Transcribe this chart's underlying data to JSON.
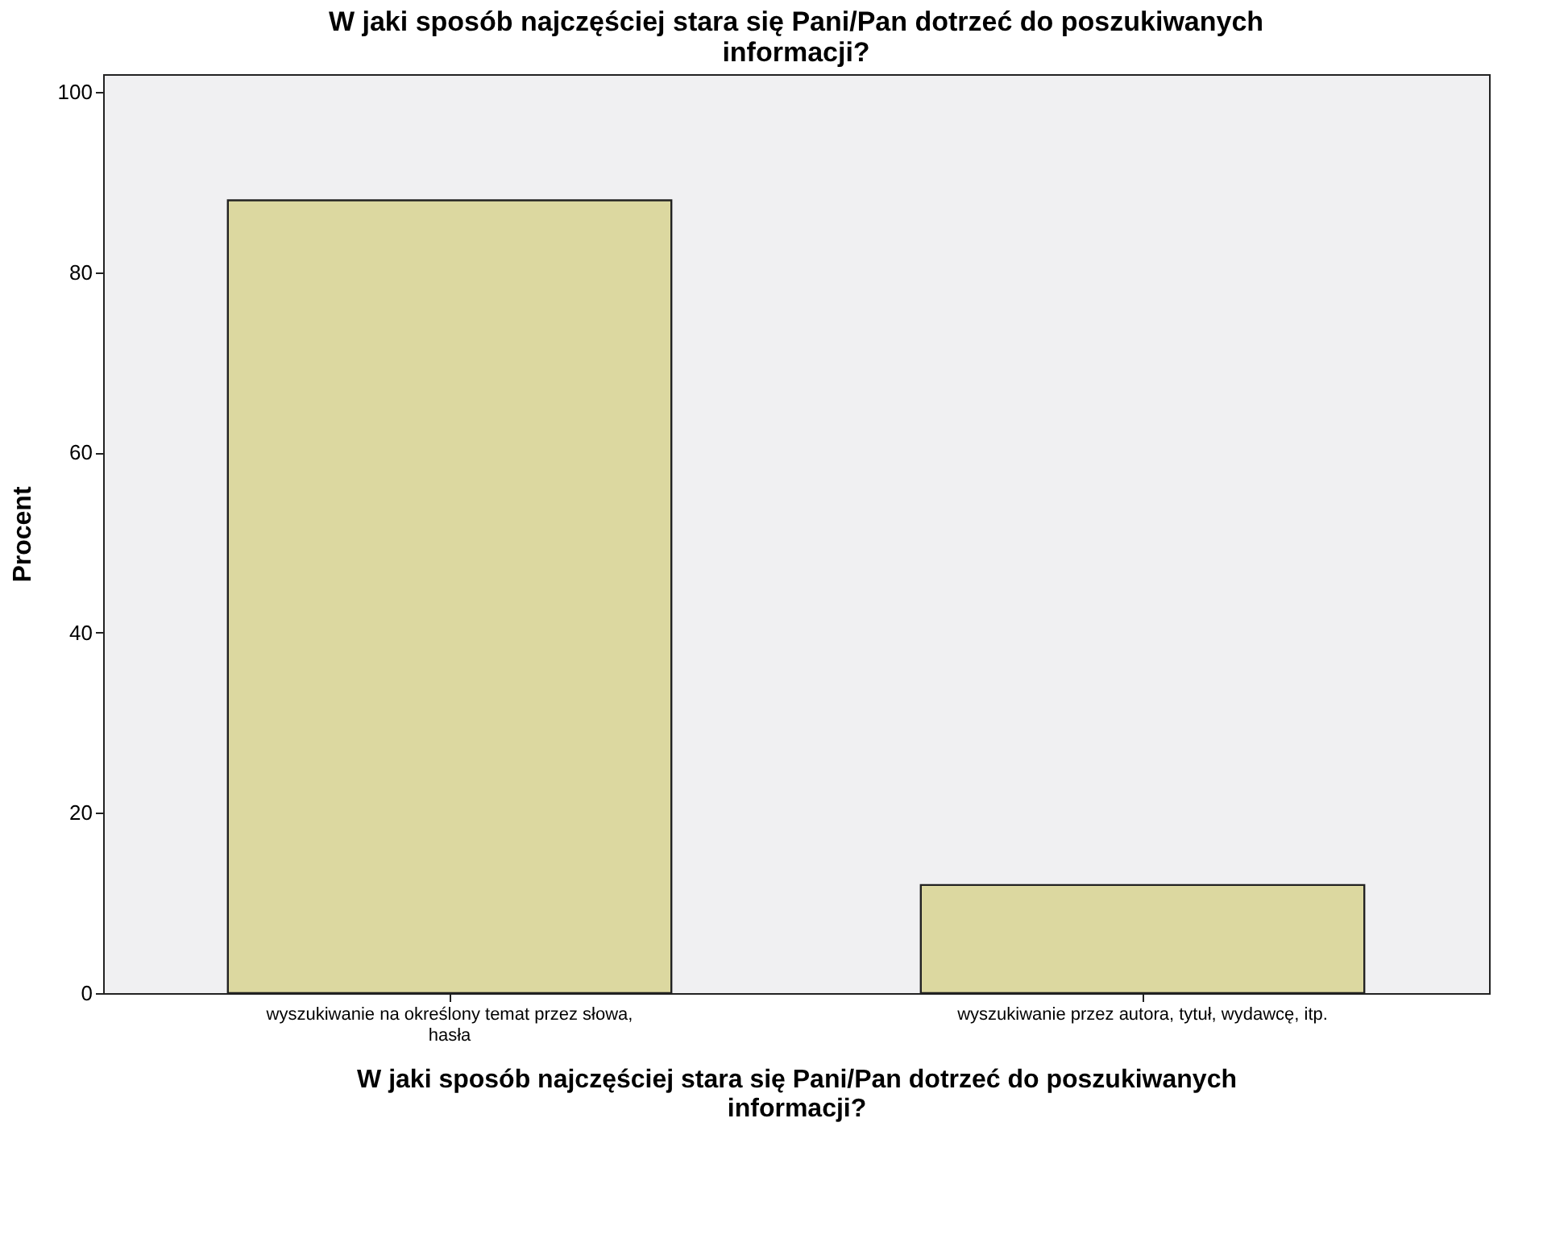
{
  "chart_data": {
    "type": "bar",
    "title": "W jaki sposób najczęściej stara się Pani/Pan dotrzeć do poszukiwanych informacji?",
    "xlabel": "W jaki sposób najczęściej stara się Pani/Pan dotrzeć do poszukiwanych informacji?",
    "ylabel": "Procent",
    "categories": [
      "wyszukiwanie na określony temat przez słowa, hasła",
      "wyszukiwanie przez autora, tytuł, wydawcę, itp."
    ],
    "values": [
      88,
      12
    ],
    "color": "#dcd8a0",
    "ylim": [
      0,
      102
    ],
    "yticks": [
      0,
      20,
      40,
      60,
      80,
      100
    ],
    "grid": false
  }
}
